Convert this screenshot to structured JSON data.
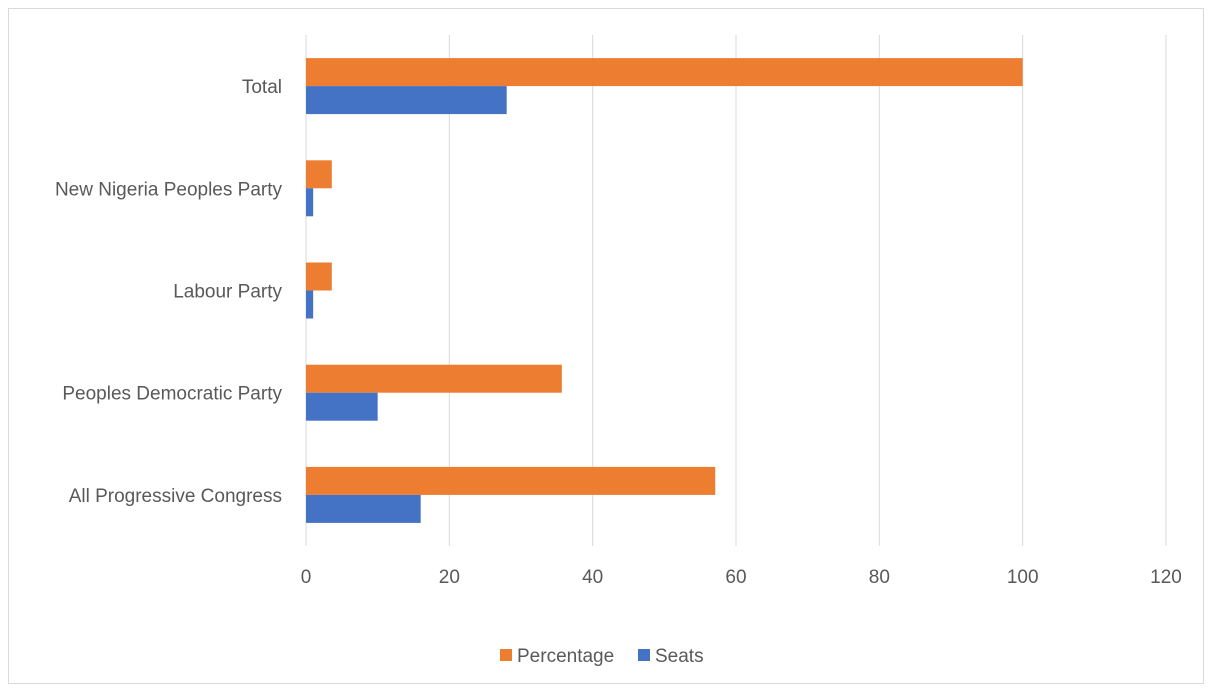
{
  "chart_data": {
    "type": "bar",
    "orientation": "horizontal",
    "categories": [
      "All Progressive Congress",
      "Peoples Democratic Party",
      "Labour Party",
      "New Nigeria Peoples Party",
      "Total"
    ],
    "series": [
      {
        "name": "Seats",
        "color": "#4472c4",
        "values": [
          16,
          10,
          1,
          1,
          28
        ]
      },
      {
        "name": "Percentage",
        "color": "#ed7d31",
        "values": [
          57.1,
          35.7,
          3.6,
          3.6,
          100
        ]
      }
    ],
    "xlim": [
      0,
      120
    ],
    "xticks": [
      "0",
      "20",
      "40",
      "60",
      "80",
      "100",
      "120"
    ],
    "grid": true,
    "legend": [
      "Percentage",
      "Seats"
    ],
    "legend_position": "bottom"
  }
}
